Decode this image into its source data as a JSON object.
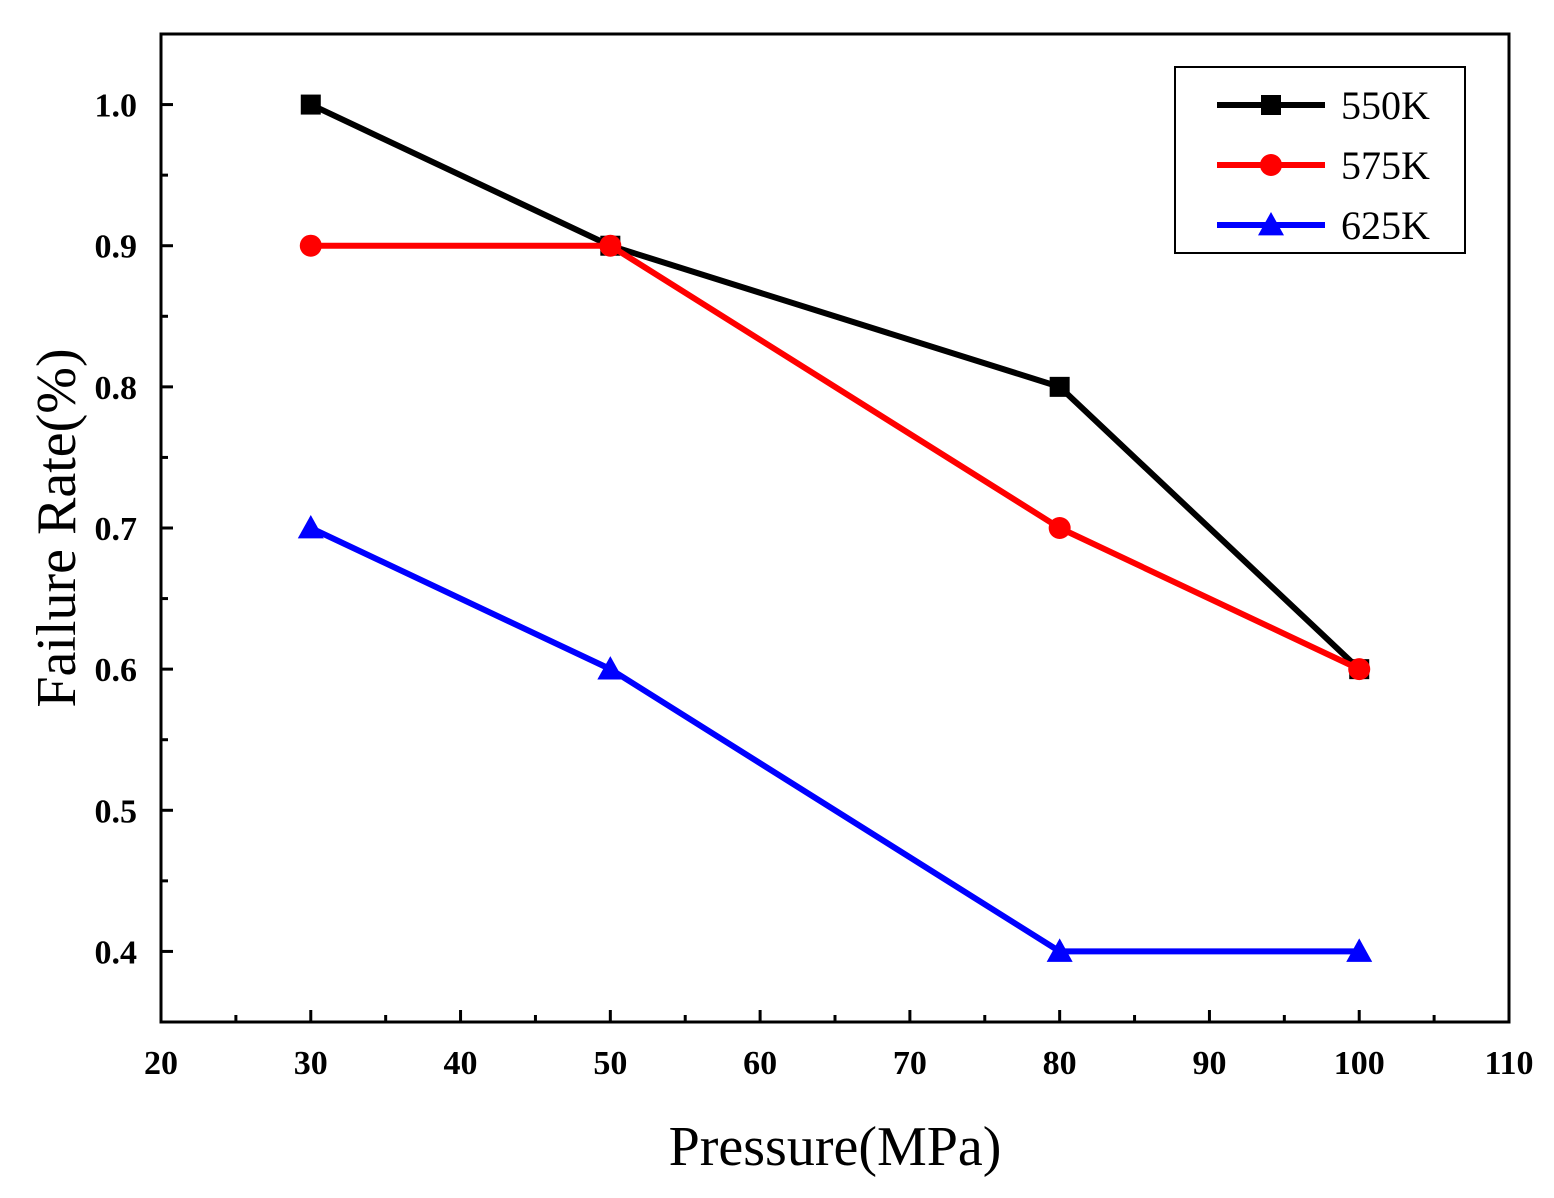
{
  "chart_data": {
    "type": "line",
    "xlabel": "Pressure(MPa)",
    "ylabel": "Failure Rate(%)",
    "xlim": [
      20,
      110
    ],
    "ylim": [
      0.35,
      1.05
    ],
    "xticks": [
      20,
      30,
      40,
      50,
      60,
      70,
      80,
      90,
      100,
      110
    ],
    "xtick_labels": [
      "20",
      "30",
      "40",
      "50",
      "60",
      "70",
      "80",
      "90",
      "100",
      "110"
    ],
    "yticks": [
      0.4,
      0.5,
      0.6,
      0.7,
      0.8,
      0.9,
      1.0
    ],
    "ytick_labels": [
      "0.4",
      "0.5",
      "0.6",
      "0.7",
      "0.8",
      "0.9",
      "1.0"
    ],
    "x": [
      30,
      50,
      80,
      100
    ],
    "series": [
      {
        "name": "550K",
        "values": [
          1.0,
          0.9,
          0.8,
          0.6
        ],
        "color": "#000000",
        "marker": "square"
      },
      {
        "name": "575K",
        "values": [
          0.9,
          0.9,
          0.7,
          0.6
        ],
        "color": "#ff0000",
        "marker": "circle"
      },
      {
        "name": "625K",
        "values": [
          0.7,
          0.6,
          0.4,
          0.4
        ],
        "color": "#0000ff",
        "marker": "triangle"
      }
    ],
    "legend_position": "top-right",
    "grid": false
  }
}
